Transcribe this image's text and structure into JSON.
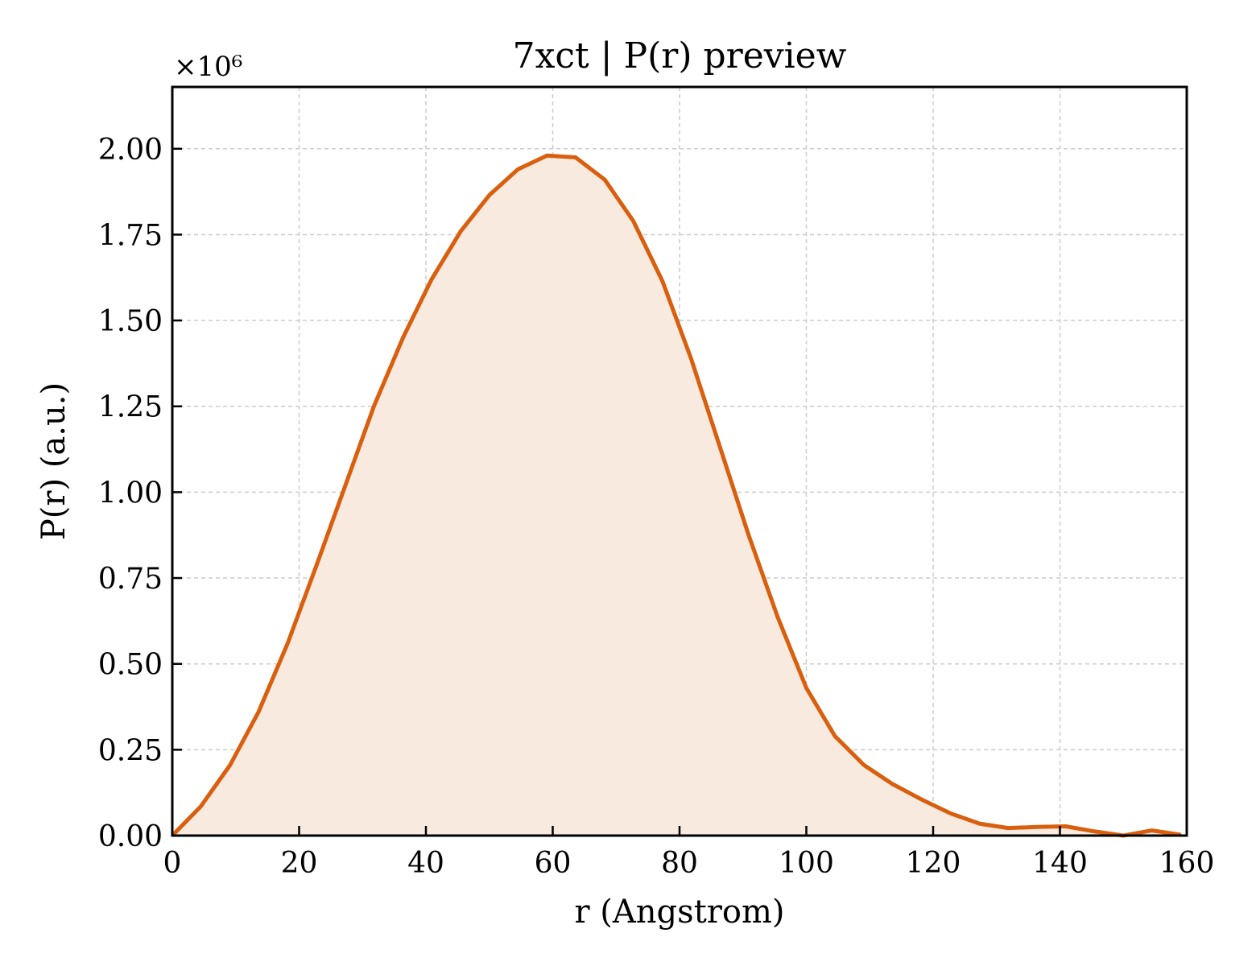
{
  "chart_data": {
    "type": "area",
    "title": "7xct | P(r) preview",
    "xlabel": "r (Angstrom)",
    "ylabel": "P(r) (a.u.)",
    "y_multiplier": "×10⁶",
    "xlim": [
      0,
      160
    ],
    "ylim": [
      0,
      2.18
    ],
    "xticks": [
      "0",
      "20",
      "40",
      "60",
      "80",
      "100",
      "120",
      "140",
      "160"
    ],
    "yticks": [
      "0.00",
      "0.25",
      "0.50",
      "0.75",
      "1.00",
      "1.25",
      "1.50",
      "1.75",
      "2.00"
    ],
    "grid": true,
    "colors": {
      "line": "#d95f0e",
      "fill": "#f9eadf"
    },
    "series": [
      {
        "x": [
          0,
          4.5,
          9.1,
          13.6,
          18.2,
          22.7,
          27.3,
          31.8,
          36.4,
          40.9,
          45.5,
          50.0,
          54.5,
          59.1,
          63.6,
          68.2,
          72.7,
          77.3,
          81.8,
          86.4,
          90.9,
          95.5,
          100.0,
          104.5,
          109.1,
          113.6,
          118.2,
          122.7,
          127.3,
          131.8,
          136.4,
          140.9,
          145.5,
          150.0,
          154.5,
          159.1
        ],
        "y": [
          0.0,
          0.085,
          0.205,
          0.36,
          0.56,
          0.785,
          1.02,
          1.25,
          1.45,
          1.62,
          1.76,
          1.865,
          1.94,
          1.98,
          1.975,
          1.91,
          1.79,
          1.615,
          1.39,
          1.13,
          0.875,
          0.635,
          0.43,
          0.29,
          0.205,
          0.15,
          0.105,
          0.065,
          0.035,
          0.022,
          0.025,
          0.027,
          0.012,
          -0.005,
          0.015,
          0.002
        ]
      }
    ]
  }
}
